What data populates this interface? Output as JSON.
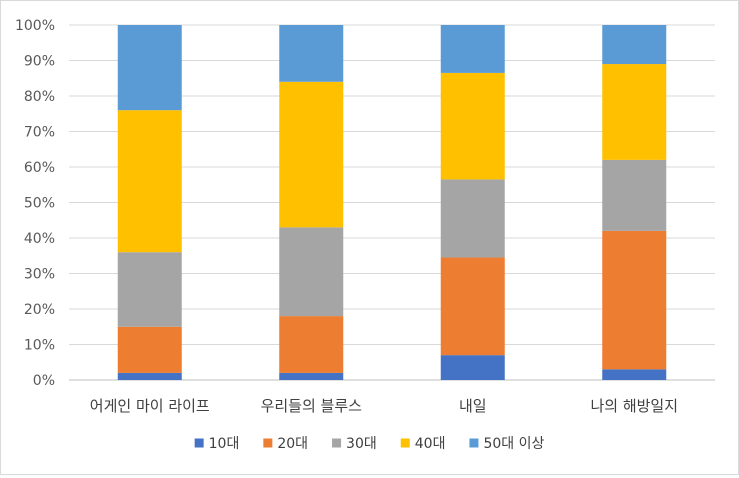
{
  "chart_data": {
    "type": "bar",
    "stacked": true,
    "normalized": true,
    "title": "",
    "xlabel": "",
    "ylabel": "",
    "ylim": [
      0,
      100
    ],
    "yticks": [
      "0%",
      "10%",
      "20%",
      "30%",
      "40%",
      "50%",
      "60%",
      "70%",
      "80%",
      "90%",
      "100%"
    ],
    "grid": true,
    "legend_position": "bottom",
    "categories": [
      "어게인 마이 라이프",
      "우리들의 블루스",
      "내일",
      "나의 해방일지"
    ],
    "series": [
      {
        "name": "10대",
        "color": "#4472c4",
        "values": [
          2,
          2,
          7,
          3
        ]
      },
      {
        "name": "20대",
        "color": "#ed7d31",
        "values": [
          13,
          16,
          27.5,
          39
        ]
      },
      {
        "name": "30대",
        "color": "#a5a5a5",
        "values": [
          21,
          25,
          22,
          20
        ]
      },
      {
        "name": "40대",
        "color": "#ffc000",
        "values": [
          40,
          41,
          30,
          27
        ]
      },
      {
        "name": "50대 이상",
        "color": "#5b9bd5",
        "values": [
          24,
          16,
          13.5,
          11
        ]
      }
    ]
  }
}
